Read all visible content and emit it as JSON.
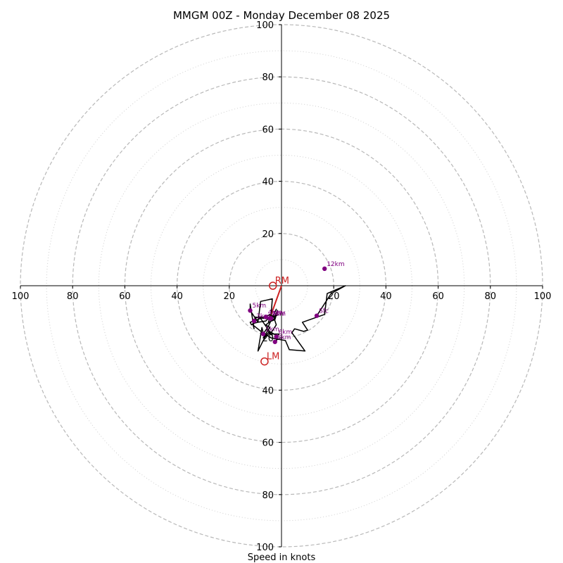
{
  "chart_data": {
    "type": "hodograph",
    "title": "MMGM 00Z - Monday December 08 2025",
    "xlabel": "Speed in knots",
    "range": [
      0,
      100
    ],
    "major_rings": [
      20,
      40,
      60,
      80,
      100
    ],
    "minor_rings": [
      10,
      30,
      50,
      70,
      90
    ],
    "tick_labels": {
      "x_left": [
        "100",
        "80",
        "60",
        "40",
        "20"
      ],
      "x_right": [
        "20",
        "40",
        "60",
        "80",
        "100"
      ],
      "y_up": [
        "20",
        "40",
        "60",
        "80",
        "100"
      ],
      "y_down": [
        "20",
        "40",
        "60",
        "80",
        "100"
      ]
    },
    "trace": {
      "color": "#000000",
      "points": [
        [
          13.5,
          -11.5
        ],
        [
          19,
          -3
        ],
        [
          24.5,
          0
        ],
        [
          17.5,
          -3
        ],
        [
          16.5,
          -11
        ],
        [
          8,
          -14
        ],
        [
          10,
          -17
        ],
        [
          8.5,
          -17.5
        ],
        [
          5,
          -16.5
        ],
        [
          4,
          -18
        ],
        [
          9,
          -25
        ],
        [
          3,
          -24.5
        ],
        [
          1.5,
          -21
        ],
        [
          -4,
          -20
        ],
        [
          -7,
          -18
        ],
        [
          -7.5,
          -16
        ],
        [
          -9,
          -25
        ],
        [
          -6,
          -19
        ],
        [
          -11,
          -15
        ],
        [
          -10,
          -12
        ],
        [
          -7,
          -12.5
        ],
        [
          -3.5,
          -12
        ],
        [
          -4,
          -11
        ],
        [
          -3.5,
          -5
        ],
        [
          -8,
          -6
        ],
        [
          -9,
          -14
        ],
        [
          -12,
          -9.5
        ],
        [
          -12,
          -7
        ],
        [
          -10.5,
          -16.5
        ],
        [
          -11,
          -14.5
        ],
        [
          -9,
          -14
        ],
        [
          -6,
          -13.5
        ],
        [
          -5,
          -12.5
        ],
        [
          -3,
          -11.5
        ],
        [
          -2.5,
          -12.5
        ],
        [
          -6,
          -15
        ],
        [
          -4.5,
          -16
        ],
        [
          -7,
          -20
        ],
        [
          -5,
          -18
        ],
        [
          -3.5,
          -19
        ],
        [
          -5.5,
          -17
        ],
        [
          -2,
          -19
        ],
        [
          -2,
          -21.5
        ],
        [
          -1.5,
          -19.5
        ],
        [
          -1,
          -18.5
        ],
        [
          -4,
          -18.5
        ],
        [
          -8,
          -12.5
        ],
        [
          -12,
          -14
        ],
        [
          -11.5,
          -15
        ],
        [
          -10.5,
          -14.5
        ],
        [
          -10,
          -12.5
        ],
        [
          -9,
          -12
        ],
        [
          -6,
          -12
        ],
        [
          -4.5,
          -11
        ],
        [
          -4,
          -12.5
        ],
        [
          -3.5,
          -12
        ],
        [
          -2.5,
          -11.5
        ],
        [
          -1.5,
          -9.5
        ],
        [
          -2.5,
          -13
        ],
        [
          -5,
          -14
        ],
        [
          -4.5,
          -12.5
        ],
        [
          -3,
          -11
        ],
        [
          -2,
          -9
        ],
        [
          -5,
          -15.5
        ],
        [
          -7,
          -18.5
        ],
        [
          -6,
          -19.5
        ],
        [
          -4,
          -18
        ],
        [
          -2,
          -15
        ],
        [
          -3,
          -12
        ],
        [
          -1,
          -11
        ]
      ]
    },
    "labeled_points": [
      {
        "label": "12km",
        "u": 16.5,
        "v": 6.5
      },
      {
        "label": "Sfc",
        "u": 13.5,
        "v": -11.5
      },
      {
        "label": "5km",
        "u": -12,
        "v": -9.5
      },
      {
        "label": "2km",
        "u": -4.5,
        "v": -12.5
      },
      {
        "label": "1km",
        "u": -7,
        "v": -18.5
      },
      {
        "label": "3km",
        "u": -10.5,
        "v": -13.5
      },
      {
        "label": "4km",
        "u": -6,
        "v": -12
      },
      {
        "label": "6km",
        "u": -2,
        "v": -19.5
      },
      {
        "label": "8km",
        "u": -2.5,
        "v": -21.5
      },
      {
        "label": "MW",
        "u": -4,
        "v": -12.5
      }
    ],
    "storm_motion": [
      {
        "label": "RM",
        "u": -3.3,
        "v": 0
      },
      {
        "label": "LM",
        "u": -6.5,
        "v": -29
      }
    ],
    "shear_vector": {
      "from": [
        0,
        0
      ],
      "to": [
        -4.5,
        -12.5
      ],
      "color": "#cc2222"
    }
  }
}
